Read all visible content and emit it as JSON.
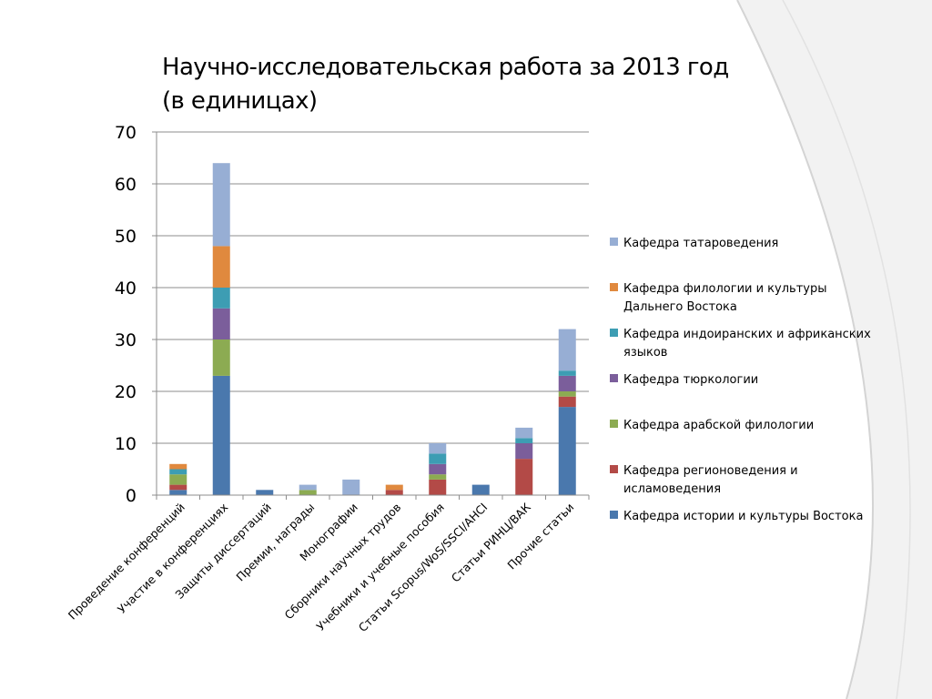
{
  "title": {
    "line1": "Научно-исследовательская работа за 2013 год",
    "line2": "(в единицах)"
  },
  "chart_data": {
    "type": "bar",
    "stacked": true,
    "categories": [
      "Проведение конференций",
      "Участие в конференциях",
      "Защиты диссертаций",
      "Премии, награды",
      "Монографии",
      "Сборники научных трудов",
      "Учебники и учебные пособия",
      "Статьи Scopus/WoS/SSCI/AHCI",
      "Статьи РИНЦ/ВАК",
      "Прочие статьи"
    ],
    "series": [
      {
        "name": "Кафедра истории и культуры Востока",
        "color": "#4a78ad",
        "values": [
          1,
          23,
          1,
          0,
          0,
          0,
          0,
          2,
          0,
          17
        ]
      },
      {
        "name": "Кафедра регионоведения и исламоведения",
        "color": "#b34a47",
        "values": [
          1,
          0,
          0,
          0,
          0,
          1,
          3,
          0,
          7,
          2
        ]
      },
      {
        "name": "Кафедра арабской филологии",
        "color": "#8cab52",
        "values": [
          2,
          7,
          0,
          1,
          0,
          0,
          1,
          0,
          0,
          1
        ]
      },
      {
        "name": "Кафедра тюркологии",
        "color": "#7b5e9b",
        "values": [
          0,
          6,
          0,
          0,
          0,
          0,
          2,
          0,
          3,
          3
        ]
      },
      {
        "name": "Кафедра индоиранских и африканских языков",
        "color": "#3d9db3",
        "values": [
          1,
          4,
          0,
          0,
          0,
          0,
          2,
          0,
          1,
          1
        ]
      },
      {
        "name": "Кафедра филологии и культуры Дальнего Востока",
        "color": "#e0893e",
        "values": [
          1,
          8,
          0,
          0,
          0,
          1,
          0,
          0,
          0,
          0
        ]
      },
      {
        "name": "Кафедра татароведения",
        "color": "#97aed4",
        "values": [
          0,
          16,
          0,
          1,
          3,
          0,
          2,
          0,
          2,
          8
        ]
      }
    ],
    "ylim": [
      0,
      70
    ],
    "yticks": [
      0,
      10,
      20,
      30,
      40,
      50,
      60,
      70
    ],
    "grid": true,
    "legend_position": "right",
    "legend": [
      {
        "series": 6,
        "lines": [
          "Кафедра татароведения"
        ]
      },
      {
        "series": 5,
        "lines": [
          "Кафедра филологии и культуры",
          "Дальнего Востока"
        ]
      },
      {
        "series": 4,
        "lines": [
          "Кафедра индоиранских и африканских",
          "языков"
        ]
      },
      {
        "series": 3,
        "lines": [
          "Кафедра тюркологии"
        ]
      },
      {
        "series": 2,
        "lines": [
          "Кафедра арабской филологии"
        ]
      },
      {
        "series": 1,
        "lines": [
          "Кафедра регионоведения и",
          "исламоведения"
        ]
      },
      {
        "series": 0,
        "lines": [
          "Кафедра истории и культуры Востока"
        ]
      }
    ]
  }
}
